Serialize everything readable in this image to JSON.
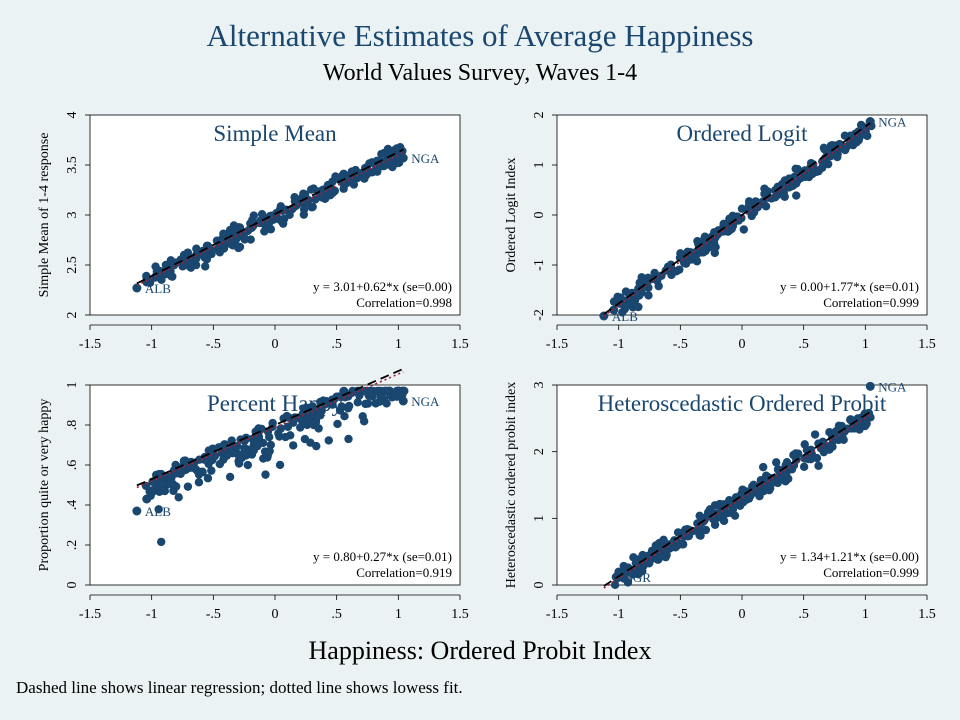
{
  "header": {
    "title": "Alternative Estimates of Average Happiness",
    "subtitle": "World Values Survey, Waves 1-4"
  },
  "xaxis_title": "Happiness: Ordered Probit Index",
  "note": "Dashed line shows linear regression; dotted line shows lowess fit.",
  "colors": {
    "background": "#eaf2f3",
    "plot_background": "#ffffff",
    "marker": "#1a476f",
    "title": "#1a476f",
    "fit_line": "#000000",
    "lowess_line": "#a0203c"
  },
  "chart_data": [
    {
      "type": "scatter",
      "title": "Simple Mean",
      "ylabel": "Simple Mean of 1-4 response",
      "xlim": [
        -1.5,
        1.5
      ],
      "ylim": [
        2,
        4
      ],
      "xticks": [
        "-1.5",
        "-1",
        "-.5",
        "0",
        ".5",
        "1",
        "1.5"
      ],
      "yticks": [
        "2",
        "2.5",
        "3",
        "3.5",
        "4"
      ],
      "regression": {
        "intercept": 3.01,
        "slope": 0.62,
        "se": "0.00"
      },
      "equation_label": "y = 3.01+0.62*x (se=0.00)",
      "correlation_label": "Correlation=0.998",
      "point_labels": [
        {
          "text": "NGA",
          "x": 1.04,
          "y": 3.57
        },
        {
          "text": "ALB",
          "x": -1.12,
          "y": 2.27
        }
      ],
      "points": [
        [
          -1.12,
          2.27
        ],
        [
          -1.04,
          2.33
        ],
        [
          1.04,
          3.57
        ],
        [
          0.95,
          3.52
        ],
        [
          0.88,
          3.5
        ]
      ]
    },
    {
      "type": "scatter",
      "title": "Ordered Logit",
      "ylabel": "Ordered Logit Index",
      "xlim": [
        -1.5,
        1.5
      ],
      "ylim": [
        -2,
        2
      ],
      "xticks": [
        "-1.5",
        "-1",
        "-.5",
        "0",
        ".5",
        "1",
        "1.5"
      ],
      "yticks": [
        "-2",
        "-1",
        "0",
        "1",
        "2"
      ],
      "regression": {
        "intercept": 0.0,
        "slope": 1.77,
        "se": "0.01"
      },
      "equation_label": "y = 0.00+1.77*x (se=0.01)",
      "correlation_label": "Correlation=0.999",
      "point_labels": [
        {
          "text": "NGA",
          "x": 1.04,
          "y": 1.87
        },
        {
          "text": "ALB",
          "x": -1.12,
          "y": -2.02
        }
      ],
      "points": [
        [
          -1.12,
          -2.02
        ],
        [
          -1.04,
          -1.9
        ],
        [
          1.04,
          1.87
        ],
        [
          0.95,
          1.55
        ],
        [
          0.88,
          1.45
        ]
      ]
    },
    {
      "type": "scatter",
      "title": "Percent Happy",
      "ylabel": "Proportion quite or very happy",
      "xlim": [
        -1.5,
        1.5
      ],
      "ylim": [
        0,
        1
      ],
      "xticks": [
        "-1.5",
        "-1",
        "-.5",
        "0",
        ".5",
        "1",
        "1.5"
      ],
      "yticks": [
        "0",
        ".2",
        ".4",
        ".6",
        ".8",
        "1"
      ],
      "regression": {
        "intercept": 0.8,
        "slope": 0.27,
        "se": "0.01"
      },
      "equation_label": "y = 0.80+0.27*x (se=0.01)",
      "correlation_label": "Correlation=0.919",
      "point_labels": [
        {
          "text": "NGA",
          "x": 1.04,
          "y": 0.92
        },
        {
          "text": "ALB",
          "x": -1.12,
          "y": 0.37
        }
      ],
      "points": [
        [
          -1.12,
          0.37
        ],
        [
          -1.04,
          0.43
        ],
        [
          1.04,
          0.92
        ],
        [
          0.95,
          0.94
        ],
        [
          0.88,
          0.93
        ]
      ]
    },
    {
      "type": "scatter",
      "title": "Heteroscedastic Ordered Probit",
      "ylabel": "Heteroscedastic ordered probit index",
      "xlim": [
        -1.5,
        1.5
      ],
      "ylim": [
        0,
        3
      ],
      "xticks": [
        "-1.5",
        "-1",
        "-.5",
        "0",
        ".5",
        "1",
        "1.5"
      ],
      "yticks": [
        "0",
        "1",
        "2",
        "3"
      ],
      "regression": {
        "intercept": 1.34,
        "slope": 1.21,
        "se": "0.00"
      },
      "equation_label": "y = 1.34+1.21*x (se=0.00)",
      "correlation_label": "Correlation=0.999",
      "point_labels": [
        {
          "text": "NGA",
          "x": 1.04,
          "y": 2.98
        },
        {
          "text": "BGR",
          "x": -1.02,
          "y": 0.12
        }
      ],
      "points": [
        [
          -1.02,
          0.12
        ],
        [
          -0.95,
          0.2
        ],
        [
          1.04,
          2.98
        ],
        [
          0.95,
          2.45
        ],
        [
          0.88,
          2.48
        ]
      ]
    }
  ]
}
